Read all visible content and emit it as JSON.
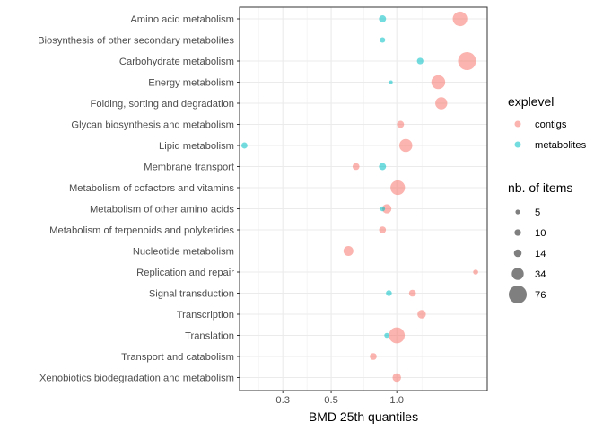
{
  "chart_data": {
    "type": "scatter",
    "xlabel": "BMD 25th quantiles",
    "x_scale": "log10",
    "xlim": [
      0.19,
      2.6
    ],
    "x_ticks": [
      0.3,
      0.5,
      1.0
    ],
    "x_tick_labels": [
      "0.3",
      "0.5",
      "1.0"
    ],
    "grid": true,
    "legend_position": "right",
    "categories": [
      "Amino acid metabolism",
      "Biosynthesis of other secondary metabolites",
      "Carbohydrate metabolism",
      "Energy metabolism",
      "Folding, sorting and degradation",
      "Glycan biosynthesis and metabolism",
      "Lipid metabolism",
      "Membrane transport",
      "Metabolism of cofactors and vitamins",
      "Metabolism of other amino acids",
      "Metabolism of terpenoids and polyketides",
      "Nucleotide metabolism",
      "Replication and repair",
      "Signal transduction",
      "Transcription",
      "Translation",
      "Transport and catabolism",
      "Xenobiotics biodegradation and metabolism"
    ],
    "color_legend": {
      "title": "explevel",
      "entries": [
        {
          "name": "contigs",
          "color": "#F8766D"
        },
        {
          "name": "metabolites",
          "color": "#00BFC4"
        }
      ]
    },
    "size_legend": {
      "title": "nb. of items",
      "values": [
        5,
        10,
        14,
        34,
        76
      ],
      "labels": [
        "5",
        "10",
        "14",
        "34",
        "76"
      ]
    },
    "series": [
      {
        "name": "contigs",
        "color": "#F8766D",
        "points": [
          {
            "category": "Amino acid metabolism",
            "x": 1.95,
            "size": 50
          },
          {
            "category": "Carbohydrate metabolism",
            "x": 2.1,
            "size": 76
          },
          {
            "category": "Energy metabolism",
            "x": 1.55,
            "size": 45
          },
          {
            "category": "Folding, sorting and degradation",
            "x": 1.6,
            "size": 34
          },
          {
            "category": "Glycan biosynthesis and metabolism",
            "x": 1.04,
            "size": 12
          },
          {
            "category": "Lipid metabolism",
            "x": 1.1,
            "size": 40
          },
          {
            "category": "Membrane transport",
            "x": 0.65,
            "size": 11
          },
          {
            "category": "Metabolism of cofactors and vitamins",
            "x": 1.01,
            "size": 50
          },
          {
            "category": "Metabolism of other amino acids",
            "x": 0.9,
            "size": 20
          },
          {
            "category": "Metabolism of terpenoids and polyketides",
            "x": 0.86,
            "size": 11
          },
          {
            "category": "Nucleotide metabolism",
            "x": 0.6,
            "size": 23
          },
          {
            "category": "Replication and repair",
            "x": 2.3,
            "size": 6
          },
          {
            "category": "Signal transduction",
            "x": 1.18,
            "size": 11
          },
          {
            "category": "Transcription",
            "x": 1.3,
            "size": 17
          },
          {
            "category": "Translation",
            "x": 1.0,
            "size": 60
          },
          {
            "category": "Transport and catabolism",
            "x": 0.78,
            "size": 11
          },
          {
            "category": "Xenobiotics biodegradation and metabolism",
            "x": 1.0,
            "size": 17
          }
        ]
      },
      {
        "name": "metabolites",
        "color": "#00BFC4",
        "points": [
          {
            "category": "Amino acid metabolism",
            "x": 0.86,
            "size": 12
          },
          {
            "category": "Biosynthesis of other secondary metabolites",
            "x": 0.86,
            "size": 7
          },
          {
            "category": "Carbohydrate metabolism",
            "x": 1.28,
            "size": 10
          },
          {
            "category": "Energy metabolism",
            "x": 0.94,
            "size": 3
          },
          {
            "category": "Lipid metabolism",
            "x": 0.2,
            "size": 9
          },
          {
            "category": "Membrane transport",
            "x": 0.86,
            "size": 12
          },
          {
            "category": "Metabolism of other amino acids",
            "x": 0.86,
            "size": 6
          },
          {
            "category": "Signal transduction",
            "x": 0.92,
            "size": 8
          },
          {
            "category": "Translation",
            "x": 0.9,
            "size": 6
          }
        ]
      }
    ]
  }
}
